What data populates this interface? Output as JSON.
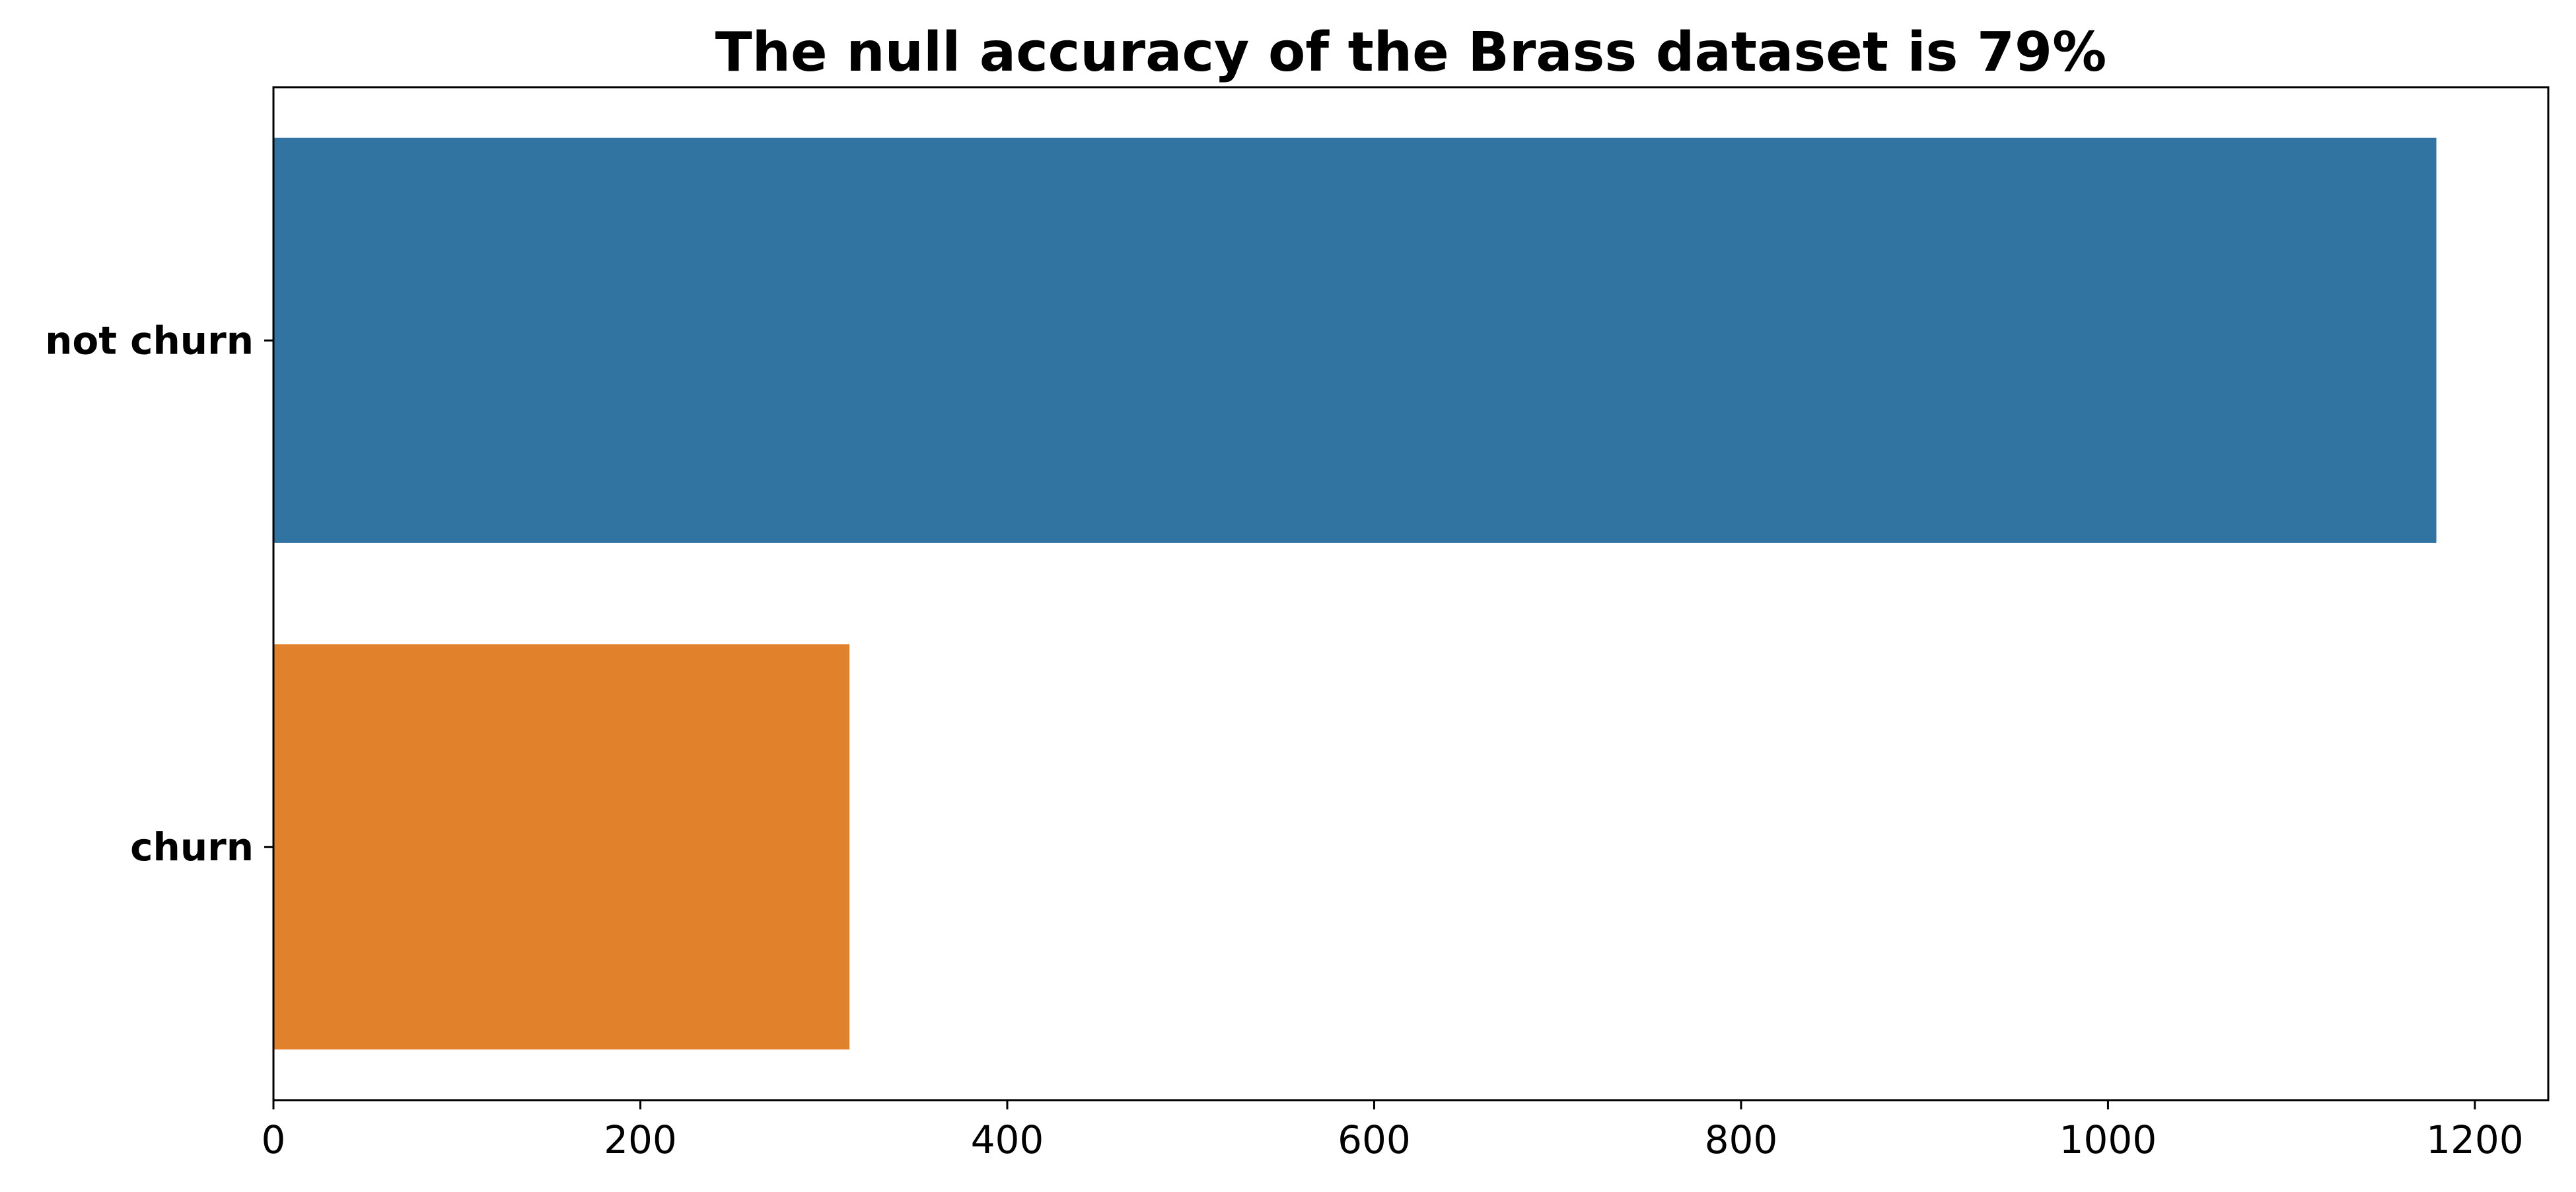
{
  "chart_data": {
    "type": "bar",
    "orientation": "horizontal",
    "title": "The null accuracy of the Brass dataset is 79%",
    "categories": [
      "not churn",
      "churn"
    ],
    "values": [
      1179,
      314
    ],
    "colors": [
      "#3274a1",
      "#e1812c"
    ],
    "xlim": [
      0,
      1240
    ],
    "x_ticks": [
      0,
      200,
      400,
      600,
      800,
      1000,
      1200
    ],
    "xlabel": "",
    "ylabel": "",
    "grid": false,
    "legend": "none"
  }
}
